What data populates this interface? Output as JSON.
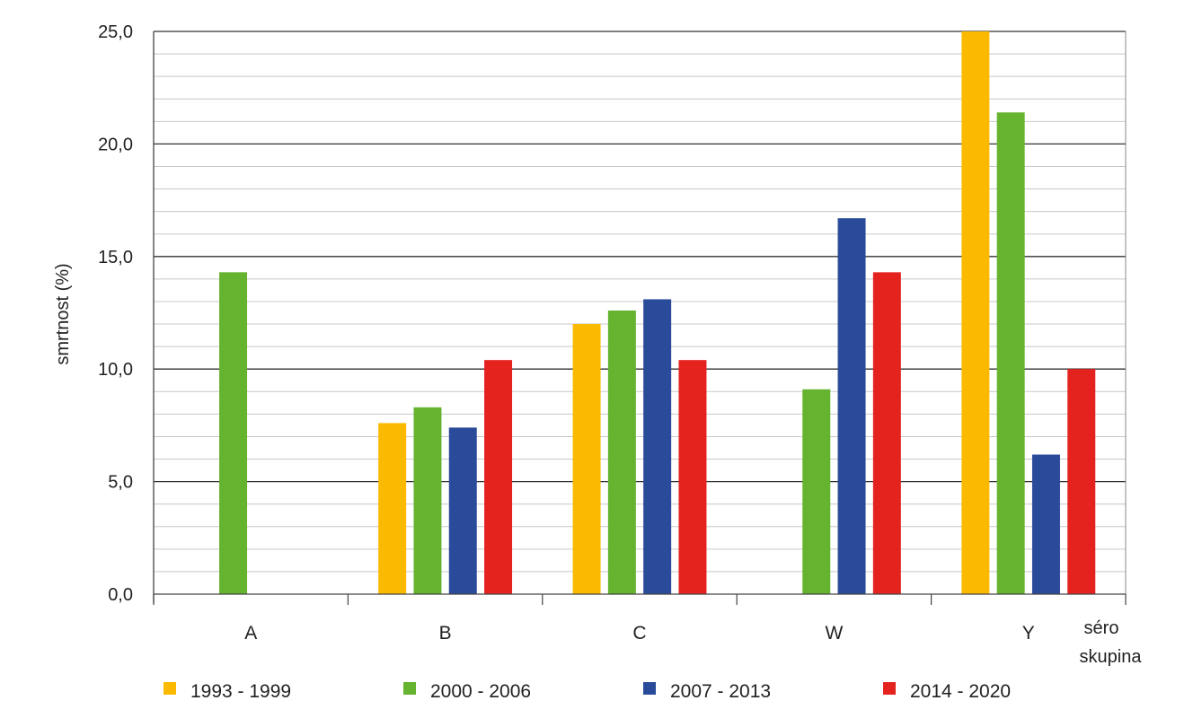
{
  "chart_data": {
    "type": "bar",
    "categories": [
      "A",
      "B",
      "C",
      "W",
      "Y"
    ],
    "series": [
      {
        "name": "1993 - 1999",
        "color": "#FBBA00",
        "values": [
          null,
          7.6,
          12.0,
          null,
          25.0
        ]
      },
      {
        "name": "2000 - 2006",
        "color": "#65B32E",
        "values": [
          14.3,
          8.3,
          12.6,
          9.1,
          21.4
        ]
      },
      {
        "name": "2007 - 2013",
        "color": "#2A4A9A",
        "values": [
          null,
          7.4,
          13.1,
          16.7,
          6.2
        ]
      },
      {
        "name": "2014 - 2020",
        "color": "#E4231F",
        "values": [
          null,
          10.4,
          10.4,
          14.3,
          10.0
        ]
      }
    ],
    "ylabel": "smrtnost (%)",
    "xlabel_line1": "séro",
    "xlabel_line2": "skupina",
    "ylim": [
      0,
      25
    ],
    "yticks": [
      "0,0",
      "5,0",
      "10,0",
      "15,0",
      "20,0",
      "25,0"
    ],
    "ytick_values": [
      0,
      5,
      10,
      15,
      20,
      25
    ],
    "minor_grid_step": 1,
    "grid": true,
    "legend_position": "bottom"
  }
}
